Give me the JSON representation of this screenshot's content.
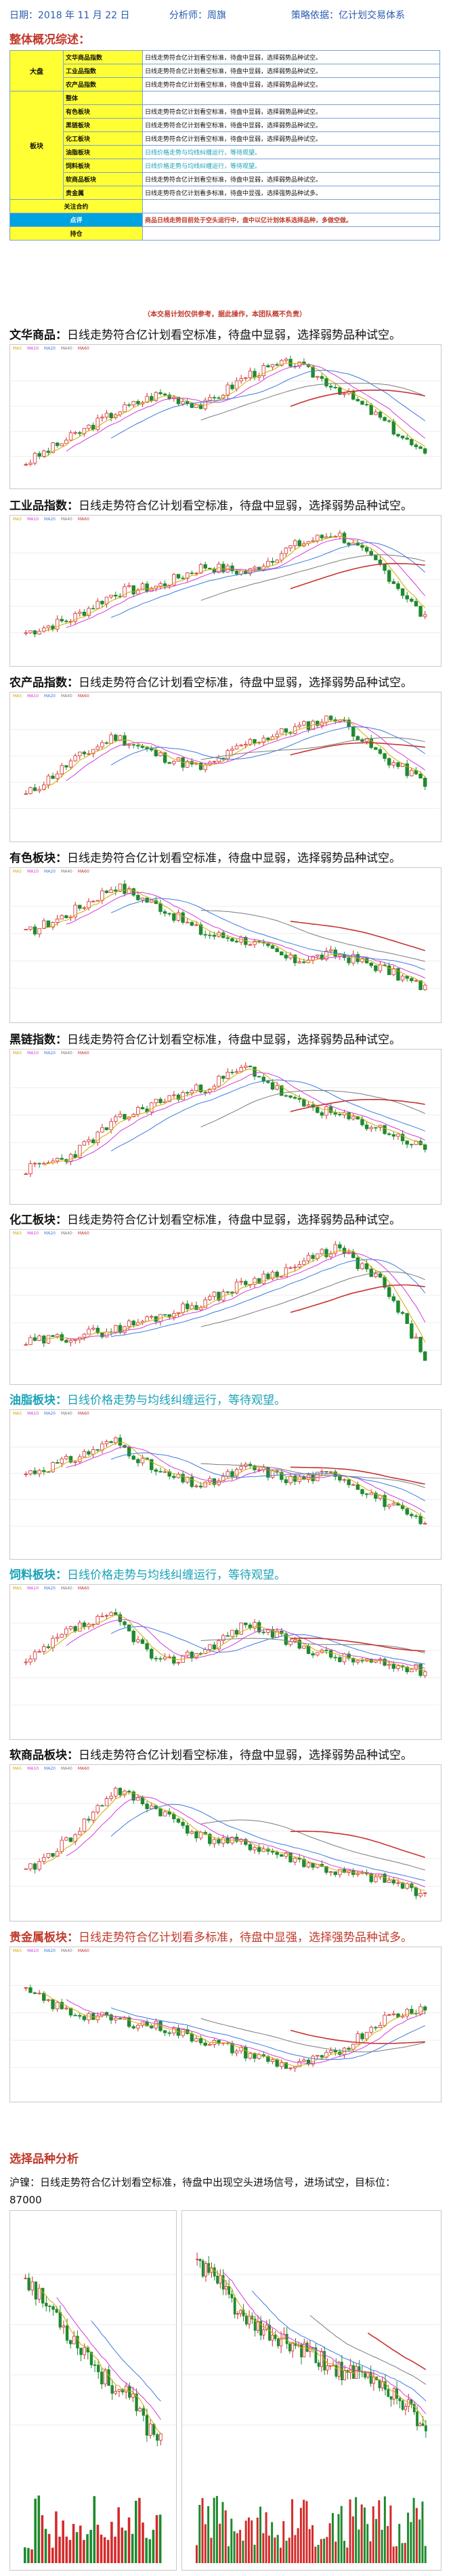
{
  "header": {
    "date_label": "日期：2018 年 11 月 22 日",
    "analyst_label": "分析师：周旗",
    "strategy_label": "策略依据：亿计划交易体系"
  },
  "overview_title": "整体概况综述：",
  "overview": {
    "group_big": "大盘",
    "group_sector": "板块",
    "rows": [
      {
        "name": "文华商品指数",
        "desc": "日线走势符合亿计划看空标准，待盘中显弱，选择弱势品种试空。",
        "style": "normal"
      },
      {
        "name": "工业品指数",
        "desc": "日线走势符合亿计划看空标准，待盘中显弱，选择弱势品种试空。",
        "style": "normal"
      },
      {
        "name": "农产品指数",
        "desc": "日线走势符合亿计划看空标准，待盘中显弱，选择弱势品种试空。",
        "style": "normal"
      },
      {
        "name": "整体",
        "desc": "",
        "style": "normal"
      },
      {
        "name": "有色板块",
        "desc": "日线走势符合亿计划看空标准，待盘中显弱，选择弱势品种试空。",
        "style": "normal"
      },
      {
        "name": "黑链板块",
        "desc": "日线走势符合亿计划看空标准，待盘中显弱，选择弱势品种试空。",
        "style": "normal"
      },
      {
        "name": "化工板块",
        "desc": "日线走势符合亿计划看空标准，待盘中显弱，选择弱势品种试空。",
        "style": "normal"
      },
      {
        "name": "油脂板块",
        "desc": "日线价格走势与均线纠缠运行，等待观望。",
        "style": "cyan"
      },
      {
        "name": "饲料板块",
        "desc": "日线价格走势与均线纠缠运行，等待观望。",
        "style": "cyan"
      },
      {
        "name": "软商品板块",
        "desc": "日线走势符合亿计划看空标准，待盘中显弱，选择弱势品种试空。",
        "style": "normal"
      },
      {
        "name": "贵金属",
        "desc": "日线走势符合亿计划看多标准，待盘中显强，选择强势品种试多。",
        "style": "normal"
      }
    ],
    "focus_label": "关注合约",
    "comment_label": "点评",
    "comment_text": "商品日线走势目前处于空头运行中，盘中以亿计划体系选择品种，多做空做。",
    "position_label": "持仓"
  },
  "disclaimer": "（本交易计划仅供参考，据此操作，本团队概不负责）",
  "sections": [
    {
      "title_bold": "文华商品：",
      "text": "日线走势符合亿计划看空标准，待盘中显弱，选择弱势品种试空。",
      "style": "black"
    },
    {
      "title_bold": "工业品指数：",
      "text": "日线走势符合亿计划看空标准，待盘中显弱，选择弱势品种试空。",
      "style": "black"
    },
    {
      "title_bold": "农产品指数：",
      "text": "日线走势符合亿计划看空标准，待盘中显弱，选择弱势品种试空。",
      "style": "black"
    },
    {
      "title_bold": "有色板块：",
      "text": "日线走势符合亿计划看空标准，待盘中显弱，选择弱势品种试空。",
      "style": "black"
    },
    {
      "title_bold": "黑链指数：",
      "text": "日线走势符合亿计划看空标准，待盘中显弱，选择弱势品种试空。",
      "style": "black"
    },
    {
      "title_bold": "化工板块：",
      "text": "日线走势符合亿计划看空标准，待盘中显弱，选择弱势品种试空。",
      "style": "black"
    },
    {
      "title_bold": "油脂板块：",
      "text": "日线价格走势与均线纠缠运行，等待观望。",
      "style": "cyan"
    },
    {
      "title_bold": "饲料板块：",
      "text": "日线价格走势与均线纠缠运行，等待观望。",
      "style": "cyan"
    },
    {
      "title_bold": "软商品板块：",
      "text": "日线走势符合亿计划看空标准，待盘中显弱，选择弱势品种试空。",
      "style": "black"
    },
    {
      "title_bold": "贵金属板块：",
      "text": "日线走势符合亿计划看多标准，待盘中显强，选择强势品种试多。",
      "style": "red"
    }
  ],
  "legend": {
    "ma5": "MA5",
    "ma10": "MA10",
    "ma20": "MA20",
    "ma40": "MA40",
    "ma60": "MA60"
  },
  "colors": {
    "up": "#d42a2a",
    "down": "#1e8a2e",
    "ma5": "#d4a800",
    "ma10": "#d63ad6",
    "ma20": "#3c7be0",
    "ma40": "#7a7a7a",
    "ma60": "#c83232"
  },
  "selection_title": "选择品种分析",
  "selection_text": "沪镍：日线走势符合亿计划看空标准，待盘中出现空头进场信号，进场试空，目标位：",
  "selection_target": "87000"
}
